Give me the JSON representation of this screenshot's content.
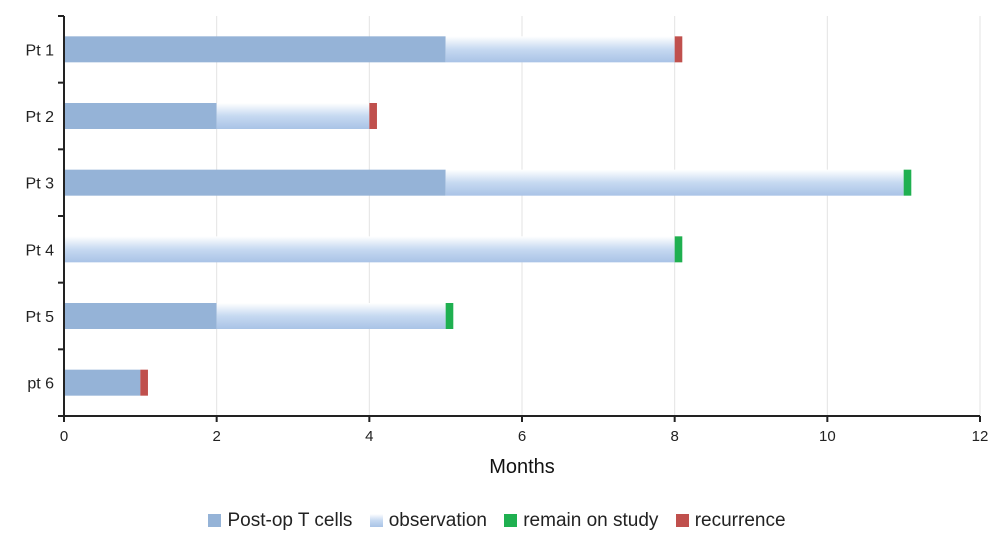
{
  "chart_data": {
    "type": "bar",
    "orientation": "horizontal",
    "stacked": true,
    "categories": [
      "Pt 1",
      "Pt 2",
      "Pt 3",
      "Pt 4",
      "Pt 5",
      "pt 6"
    ],
    "series": [
      {
        "name": "Post-op T cells",
        "values": [
          5,
          2,
          5,
          0,
          2,
          1
        ],
        "color": "#95b3d7"
      },
      {
        "name": "observation",
        "values": [
          3,
          2,
          6,
          8,
          3,
          0
        ],
        "color": "#c6d9f1"
      },
      {
        "name": "remain on study",
        "values": [
          0,
          0,
          0.1,
          0.1,
          0.1,
          0
        ],
        "color": "#1fb050"
      },
      {
        "name": "recurrence",
        "values": [
          0.1,
          0.1,
          0,
          0,
          0,
          0.1
        ],
        "color": "#c0504d"
      }
    ],
    "xlabel": "Months",
    "ylabel": "",
    "xlim": [
      0,
      12
    ],
    "xticks": [
      "0",
      "2",
      "4",
      "6",
      "8",
      "10",
      "12"
    ],
    "grid": "vertical",
    "legend_position": "bottom"
  }
}
